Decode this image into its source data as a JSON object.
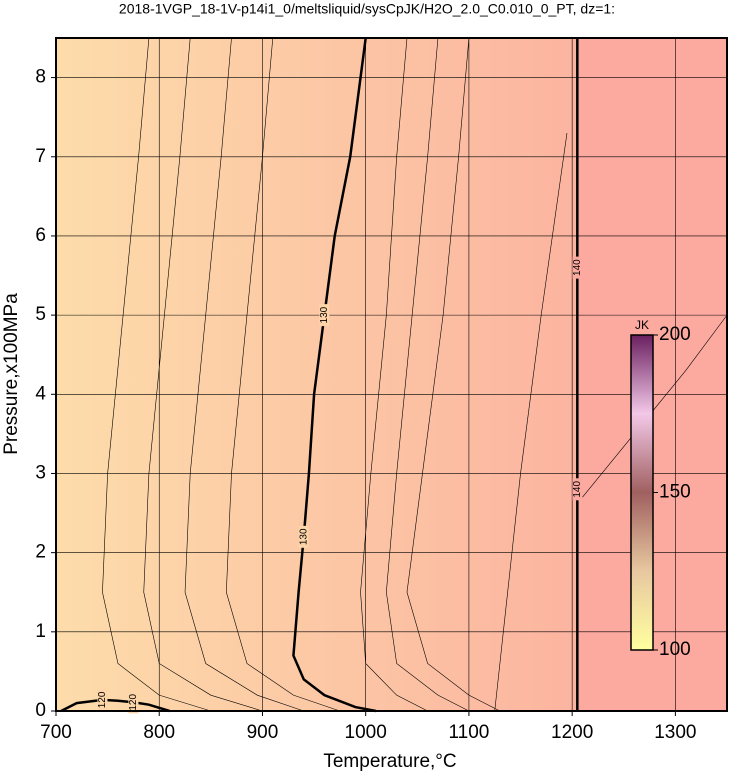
{
  "chart_data": {
    "type": "contour",
    "title": "2018-1VGP_18-1V-p14i1_0/meltsliquid/sysCpJK/H2O_2.0_C0.010_0_PT, dz=1:",
    "x_label": "Temperature,°C",
    "y_label": "Pressure,x100MPa",
    "xlim": [
      700,
      1350
    ],
    "ylim": [
      0,
      8.5
    ],
    "xticks": [
      700,
      800,
      900,
      1000,
      1100,
      1200,
      1300
    ],
    "yticks": [
      0,
      1,
      2,
      3,
      4,
      5,
      6,
      7,
      8
    ],
    "grid": true,
    "colorbar": {
      "label": "JK",
      "lim": [
        100,
        200
      ],
      "ticks": [
        100,
        150,
        200
      ]
    },
    "contours": [
      {
        "level": 130,
        "x": [
          1000,
          985,
          970,
          960,
          950,
          945,
          940,
          935,
          930,
          940,
          960,
          990,
          1010
        ],
        "y": [
          8.5,
          7,
          6,
          5,
          4,
          3,
          2.2,
          1.5,
          0.7,
          0.4,
          0.2,
          0.05,
          0
        ]
      },
      {
        "level": 140,
        "x": [
          1205,
          1205,
          1205,
          1205
        ],
        "y": [
          8.5,
          5.6,
          2.8,
          0
        ]
      },
      {
        "level": 120,
        "x": [
          705,
          720,
          745,
          760,
          775,
          790,
          810
        ],
        "y": [
          0,
          0.1,
          0.14,
          0.13,
          0.11,
          0.08,
          0
        ]
      },
      {
        "x": [
          790,
          780,
          765,
          750,
          745,
          760,
          800,
          850
        ],
        "y": [
          8.5,
          7,
          5,
          3,
          1.5,
          0.6,
          0.2,
          0
        ]
      },
      {
        "x": [
          830,
          820,
          805,
          790,
          785,
          800,
          850,
          900
        ],
        "y": [
          8.5,
          7,
          5,
          3,
          1.5,
          0.6,
          0.2,
          0
        ]
      },
      {
        "x": [
          870,
          860,
          845,
          830,
          825,
          845,
          895,
          940
        ],
        "y": [
          8.5,
          7,
          5,
          3,
          1.5,
          0.6,
          0.2,
          0
        ]
      },
      {
        "x": [
          910,
          900,
          885,
          870,
          865,
          885,
          930,
          975
        ],
        "y": [
          8.5,
          7,
          5,
          3,
          1.5,
          0.6,
          0.2,
          0
        ]
      },
      {
        "x": [
          1040,
          1030,
          1020,
          1005,
          995,
          1000,
          1030,
          1060
        ],
        "y": [
          8.5,
          7,
          5,
          3,
          1.5,
          0.6,
          0.2,
          0
        ]
      },
      {
        "x": [
          1070,
          1060,
          1045,
          1030,
          1020,
          1030,
          1070,
          1100
        ],
        "y": [
          8.5,
          7,
          5,
          3,
          1.5,
          0.6,
          0.2,
          0
        ]
      },
      {
        "x": [
          1100,
          1090,
          1075,
          1055,
          1040,
          1060,
          1100,
          1130
        ],
        "y": [
          8.5,
          7,
          5,
          3,
          1.5,
          0.6,
          0.2,
          0
        ]
      },
      {
        "x": [
          1195,
          1170,
          1150,
          1125
        ],
        "y": [
          7.3,
          5,
          3,
          0
        ]
      },
      {
        "x": [
          1210,
          1260,
          1310,
          1350
        ],
        "y": [
          2.7,
          3.5,
          4.3,
          5
        ]
      }
    ]
  }
}
